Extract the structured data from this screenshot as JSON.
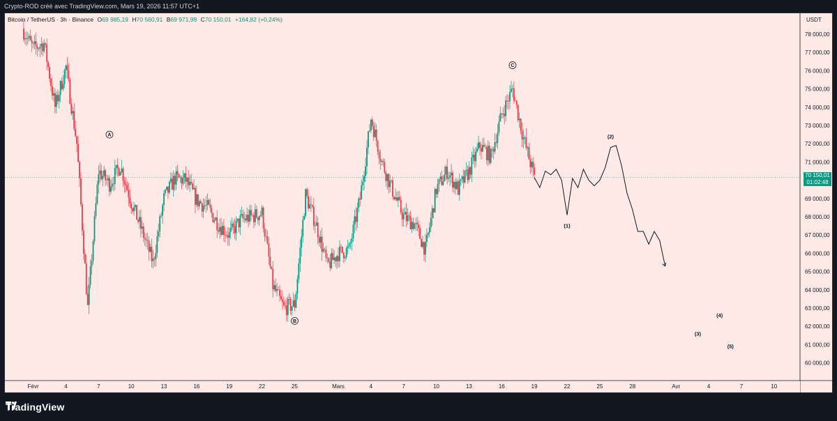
{
  "header": {
    "caption": "Crypto-ROD créé avec TradingView.com, Mars 19, 2026 11:57 UTC+1"
  },
  "legend": {
    "symbol": "Bitcoin / TetherUS · 3h · Binance",
    "open_label": "O",
    "open": "69 985,19",
    "high_label": "H",
    "high": "70 560,91",
    "low_label": "B",
    "low": "69 971,99",
    "close_label": "C",
    "close": "70 150,01",
    "change": "+164,82 (+0,24%)"
  },
  "price_tag": {
    "price": "70 150,01",
    "countdown": "01:02:48"
  },
  "footer": {
    "brand": "TradingView"
  },
  "colors": {
    "background": "#fde9e5",
    "up": "#089981",
    "down": "#f23645",
    "chrome": "#131722"
  },
  "chart_data": {
    "type": "candlestick",
    "currency": "USDT",
    "ylim": [
      59500,
      78500
    ],
    "y_ticks": [
      60000,
      61000,
      62000,
      63000,
      64000,
      65000,
      66000,
      67000,
      68000,
      69000,
      70000,
      71000,
      72000,
      73000,
      74000,
      75000,
      76000,
      77000,
      78000
    ],
    "y_tick_labels": [
      "60 000,00",
      "61 000,00",
      "62 000,00",
      "63 000,00",
      "64 000,00",
      "65 000,00",
      "66 000,00",
      "67 000,00",
      "68 000,00",
      "69 000,00",
      "70 000,00",
      "71 000,00",
      "72 000,00",
      "73 000,00",
      "74 000,00",
      "75 000,00",
      "76 000,00",
      "77 000,00",
      "78 000,00"
    ],
    "x_ticks": [
      {
        "date": "2026-02-01",
        "label": "Févr"
      },
      {
        "date": "2026-02-04",
        "label": "4"
      },
      {
        "date": "2026-02-07",
        "label": "7"
      },
      {
        "date": "2026-02-10",
        "label": "10"
      },
      {
        "date": "2026-02-13",
        "label": "13"
      },
      {
        "date": "2026-02-16",
        "label": "16"
      },
      {
        "date": "2026-02-19",
        "label": "19"
      },
      {
        "date": "2026-02-22",
        "label": "22"
      },
      {
        "date": "2026-02-25",
        "label": "25"
      },
      {
        "date": "2026-03-01",
        "label": "Mars"
      },
      {
        "date": "2026-03-04",
        "label": "4"
      },
      {
        "date": "2026-03-07",
        "label": "7"
      },
      {
        "date": "2026-03-10",
        "label": "10"
      },
      {
        "date": "2026-03-13",
        "label": "13"
      },
      {
        "date": "2026-03-16",
        "label": "16"
      },
      {
        "date": "2026-03-19",
        "label": "19"
      },
      {
        "date": "2026-03-22",
        "label": "22"
      },
      {
        "date": "2026-03-25",
        "label": "25"
      },
      {
        "date": "2026-03-28",
        "label": "28"
      },
      {
        "date": "2026-04-01",
        "label": "Avr"
      },
      {
        "date": "2026-04-04",
        "label": "4"
      },
      {
        "date": "2026-04-07",
        "label": "7"
      },
      {
        "date": "2026-04-10",
        "label": "10"
      }
    ],
    "price_path": [
      [
        "2026-01-31",
        78300
      ],
      [
        "2026-02-01",
        77200
      ],
      [
        "2026-02-02",
        77500
      ],
      [
        "2026-02-03",
        74000
      ],
      [
        "2026-02-04",
        76200
      ],
      [
        "2026-02-05",
        72000
      ],
      [
        "2026-02-06",
        63000
      ],
      [
        "2026-02-07",
        70500
      ],
      [
        "2026-02-08",
        69800
      ],
      [
        "2026-02-09",
        70800
      ],
      [
        "2026-02-10",
        68800
      ],
      [
        "2026-02-11",
        67200
      ],
      [
        "2026-02-12",
        65500
      ],
      [
        "2026-02-13",
        69000
      ],
      [
        "2026-02-14",
        70100
      ],
      [
        "2026-02-15",
        70000
      ],
      [
        "2026-02-16",
        68900
      ],
      [
        "2026-02-17",
        68500
      ],
      [
        "2026-02-18",
        67600
      ],
      [
        "2026-02-19",
        67000
      ],
      [
        "2026-02-20",
        67800
      ],
      [
        "2026-02-21",
        68000
      ],
      [
        "2026-02-22",
        68200
      ],
      [
        "2026-02-23",
        64200
      ],
      [
        "2026-02-24",
        63000
      ],
      [
        "2026-02-25",
        63200
      ],
      [
        "2026-02-26",
        69200
      ],
      [
        "2026-02-27",
        67500
      ],
      [
        "2026-02-28",
        65300
      ],
      [
        "2026-03-01",
        66000
      ],
      [
        "2026-03-02",
        66200
      ],
      [
        "2026-03-03",
        69000
      ],
      [
        "2026-03-04",
        73400
      ],
      [
        "2026-03-05",
        71000
      ],
      [
        "2026-03-06",
        69400
      ],
      [
        "2026-03-07",
        68000
      ],
      [
        "2026-03-08",
        67600
      ],
      [
        "2026-03-09",
        66200
      ],
      [
        "2026-03-10",
        69500
      ],
      [
        "2026-03-11",
        70500
      ],
      [
        "2026-03-12",
        69500
      ],
      [
        "2026-03-13",
        70500
      ],
      [
        "2026-03-14",
        71900
      ],
      [
        "2026-03-15",
        71300
      ],
      [
        "2026-03-16",
        73600
      ],
      [
        "2026-03-17",
        75000
      ],
      [
        "2026-03-18",
        72300
      ],
      [
        "2026-03-19",
        70150
      ]
    ],
    "current_price": 70150.01,
    "projection_path": [
      [
        "2026-03-19",
        70150
      ],
      [
        "2026-03-19T12",
        69600
      ],
      [
        "2026-03-20",
        70500
      ],
      [
        "2026-03-20T12",
        70300
      ],
      [
        "2026-03-21",
        70600
      ],
      [
        "2026-03-21T12",
        70000
      ],
      [
        "2026-03-22",
        68100
      ],
      [
        "2026-03-22T12",
        70100
      ],
      [
        "2026-03-23",
        69600
      ],
      [
        "2026-03-23T12",
        70600
      ],
      [
        "2026-03-24",
        70000
      ],
      [
        "2026-03-24T12",
        69700
      ],
      [
        "2026-03-25",
        70000
      ],
      [
        "2026-03-25T12",
        70700
      ],
      [
        "2026-03-26",
        71800
      ],
      [
        "2026-03-26T12",
        71900
      ],
      [
        "2026-03-27",
        70800
      ],
      [
        "2026-03-27T12",
        69300
      ],
      [
        "2026-03-28",
        68400
      ],
      [
        "2026-03-28T12",
        67200
      ],
      [
        "2026-03-29",
        67200
      ],
      [
        "2026-03-29T12",
        66500
      ],
      [
        "2026-03-30",
        67200
      ],
      [
        "2026-03-30T12",
        66700
      ],
      [
        "2026-03-31",
        65300
      ]
    ],
    "annotations": [
      {
        "label": "A",
        "date": "2026-02-08",
        "price": 72500,
        "circled": true
      },
      {
        "label": "B",
        "date": "2026-02-25",
        "price": 62300,
        "circled": true
      },
      {
        "label": "C",
        "date": "2026-03-17",
        "price": 76300,
        "circled": true
      },
      {
        "label": "(1)",
        "date": "2026-03-22",
        "price": 67500,
        "circled": false
      },
      {
        "label": "(2)",
        "date": "2026-03-26",
        "price": 72400,
        "circled": false
      },
      {
        "label": "(3)",
        "date": "2026-04-03",
        "price": 61600,
        "circled": false
      },
      {
        "label": "(4)",
        "date": "2026-04-05",
        "price": 62600,
        "circled": false
      },
      {
        "label": "(5)",
        "date": "2026-04-06",
        "price": 60900,
        "circled": false
      }
    ]
  }
}
